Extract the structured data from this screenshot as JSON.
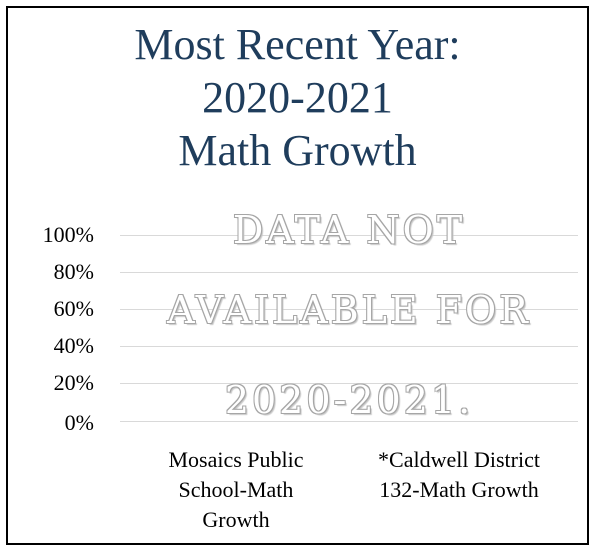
{
  "chart_data": {
    "type": "bar",
    "title": [
      "Most Recent Year:",
      "2020-2021",
      "Math Growth"
    ],
    "categories": [
      "Mosaics Public School-Math Growth",
      "*Caldwell District 132-Math Growth"
    ],
    "series": [],
    "yticks": [
      "100%",
      "80%",
      "60%",
      "40%",
      "20%",
      "0%"
    ],
    "ylim": [
      0,
      100
    ],
    "grid": true,
    "notice": [
      "DATA NOT",
      "AVAILABLE FOR",
      "2020-2021."
    ],
    "category_lines": [
      [
        "Mosaics Public",
        "School-Math",
        "Growth"
      ],
      [
        "*Caldwell District",
        "132-Math Growth"
      ]
    ],
    "colors": {
      "title": "#1f3d5c",
      "grid": "#d9d9d9",
      "watermark_outline": "#a6a6a6"
    }
  }
}
